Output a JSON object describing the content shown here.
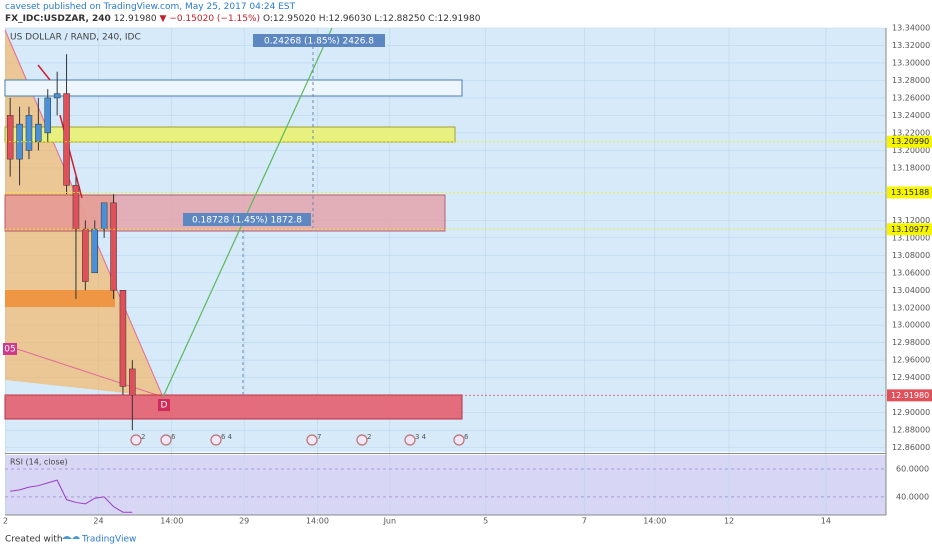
{
  "header": {
    "publisher": "caveset published on TradingView.com, May 25, 2017 04:24 EST",
    "symbol": "FX_IDC:USDZAR, 240",
    "last": "12.91980",
    "change": "▼ −0.15020 (−1.15%)",
    "ohlc": "O:12.95020 H:12.96030 L:12.88250 C:12.91980"
  },
  "chart_data": {
    "type": "candlestick",
    "title": "US DOLLAR / RAND, 240, IDC",
    "x": [
      0,
      1,
      2,
      3,
      4,
      5,
      6,
      7,
      8,
      9,
      10,
      11,
      12,
      13
    ],
    "open": [
      13.24,
      13.19,
      13.2,
      13.21,
      13.22,
      13.26,
      13.265,
      13.16,
      13.11,
      13.06,
      13.11,
      13.14,
      13.04,
      12.95
    ],
    "high": [
      13.26,
      13.25,
      13.25,
      13.26,
      13.27,
      13.29,
      13.31,
      13.17,
      13.12,
      13.12,
      13.14,
      13.15,
      13.04,
      12.96
    ],
    "low": [
      13.17,
      13.16,
      13.19,
      13.2,
      13.21,
      13.24,
      13.15,
      13.03,
      13.04,
      13.06,
      13.1,
      13.03,
      12.92,
      12.88
    ],
    "close": [
      13.19,
      13.23,
      13.24,
      13.23,
      13.26,
      13.265,
      13.16,
      13.11,
      13.05,
      13.11,
      13.14,
      13.04,
      12.93,
      12.92
    ],
    "up_color": "#4a90d9",
    "down_color": "#e0505a",
    "xlim": [
      -0.55,
      93.2
    ],
    "xticks": [
      {
        "value": -0.5,
        "label": "2"
      },
      {
        "value": 9.4,
        "label": "24"
      },
      {
        "value": 17.2,
        "label": "14:00"
      },
      {
        "value": 24.9,
        "label": "29"
      },
      {
        "value": 32.7,
        "label": "14:00"
      },
      {
        "value": 40.4,
        "label": "Jun"
      },
      {
        "value": 50.6,
        "label": "5"
      },
      {
        "value": 61.1,
        "label": "7"
      },
      {
        "value": 68.6,
        "label": "14:00"
      },
      {
        "value": 76.5,
        "label": "12"
      },
      {
        "value": 86.8,
        "label": "14"
      }
    ],
    "ylim": [
      12.855,
      13.34
    ],
    "yticks": [
      {
        "value": 13.34,
        "label": "13.34000"
      },
      {
        "value": 13.32,
        "label": "13.32000"
      },
      {
        "value": 13.3,
        "label": "13.30000"
      },
      {
        "value": 13.28,
        "label": "13.28000"
      },
      {
        "value": 13.26,
        "label": "13.26000"
      },
      {
        "value": 13.24,
        "label": "13.24000"
      },
      {
        "value": 13.22,
        "label": "13.22000"
      },
      {
        "value": 13.2,
        "label": "13.20000"
      },
      {
        "value": 13.18,
        "label": "13.18000"
      },
      {
        "value": 13.12,
        "label": "13.12000"
      },
      {
        "value": 13.1,
        "label": "13.10000"
      },
      {
        "value": 13.08,
        "label": "13.08000"
      },
      {
        "value": 13.06,
        "label": "13.06000"
      },
      {
        "value": 13.04,
        "label": "13.04000"
      },
      {
        "value": 13.02,
        "label": "13.02000"
      },
      {
        "value": 13.0,
        "label": "13.00000"
      },
      {
        "value": 12.98,
        "label": "12.98000"
      },
      {
        "value": 12.96,
        "label": "12.96000"
      },
      {
        "value": 12.94,
        "label": "12.94000"
      },
      {
        "value": 12.9,
        "label": "12.90000"
      },
      {
        "value": 12.88,
        "label": "12.88000"
      },
      {
        "value": 12.86,
        "label": "12.86000"
      }
    ],
    "price_labels": [
      {
        "value": 13.2099,
        "label": "13.20990",
        "color": "#f5f500"
      },
      {
        "value": 13.15188,
        "label": "13.15188",
        "color": "#f5f500"
      },
      {
        "value": 13.10977,
        "label": "13.10977",
        "color": "#f5f500"
      },
      {
        "value": 12.9198,
        "label": "12.91980",
        "color": "#e0505a"
      }
    ],
    "annotations": [
      "0.24268 (1.85%) 2426.8",
      "0.18728 (1.45%) 1872.8",
      "05",
      "D"
    ],
    "events": [
      "2",
      "6",
      "6 4",
      "7",
      "2",
      "3 4",
      "6"
    ],
    "rsi": {
      "title": "RSI (14, close)",
      "color": "#9b3dc8",
      "values": [
        44,
        45,
        47,
        48,
        50,
        52,
        38,
        36,
        35,
        39,
        40,
        33,
        29,
        29
      ],
      "ylim": [
        27,
        70
      ],
      "yticks": [
        {
          "value": 60,
          "label": "60.0000"
        },
        {
          "value": 40,
          "label": "40.0000"
        }
      ]
    }
  },
  "footer": {
    "created": "Created with",
    "brand": "TradingView"
  }
}
